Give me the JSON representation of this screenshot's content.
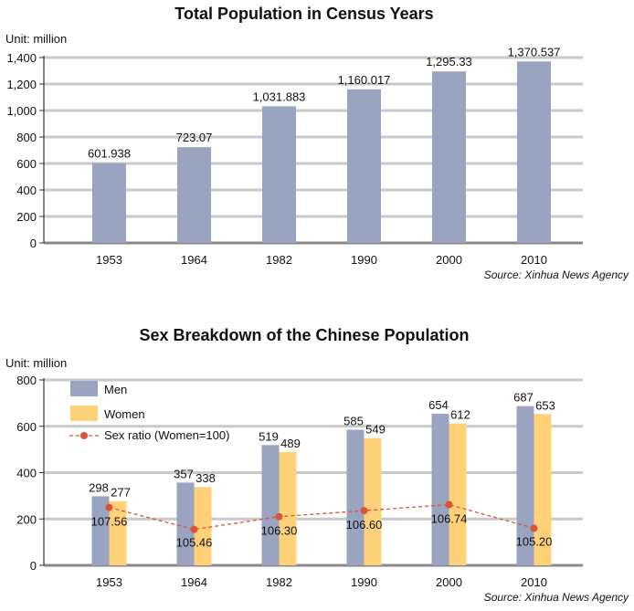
{
  "colors": {
    "men": "#9aa3bf",
    "women": "#ffd27a",
    "ratio": "#d9543b",
    "grid": "#c9c9c9",
    "axis": "#333333"
  },
  "chart_data": [
    {
      "type": "bar",
      "title": "Total Population in Census Years",
      "unit_label": "Unit: million",
      "source": "Source: Xinhua News Agency",
      "categories": [
        "1953",
        "1964",
        "1982",
        "1990",
        "2000",
        "2010"
      ],
      "values": [
        601.938,
        723.07,
        1031.883,
        1160.017,
        1295.33,
        1370.537
      ],
      "value_labels": [
        "601.938",
        "723.07",
        "1,031.883",
        "1,160.017",
        "1,295.33",
        "1,370.537"
      ],
      "ylim": [
        0,
        1400
      ],
      "yticks": [
        0,
        200,
        400,
        600,
        800,
        1000,
        1200,
        1400
      ],
      "ytick_labels": [
        "0",
        "200",
        "400",
        "600",
        "800",
        "1,000",
        "1,200",
        "1,400"
      ],
      "grid": true
    },
    {
      "type": "bar",
      "title": "Sex Breakdown of the Chinese Population",
      "unit_label": "Unit: million",
      "source": "Source: Xinhua News Agency",
      "categories": [
        "1953",
        "1964",
        "1982",
        "1990",
        "2000",
        "2010"
      ],
      "series": [
        {
          "name": "Men",
          "values": [
            298,
            357,
            519,
            585,
            654,
            687
          ]
        },
        {
          "name": "Women",
          "values": [
            277,
            338,
            489,
            549,
            612,
            653
          ]
        }
      ],
      "line_series": {
        "name": "Sex ratio (Women=100)",
        "values": [
          107.56,
          105.46,
          106.3,
          106.6,
          106.74,
          105.2
        ],
        "value_labels": [
          "107.56",
          "105.46",
          "106.30",
          "106.60",
          "106.74",
          "105.20"
        ],
        "plot_values": [
          250,
          155,
          210,
          236,
          262,
          160
        ]
      },
      "ylim": [
        0,
        800
      ],
      "yticks": [
        0,
        200,
        400,
        600,
        800
      ],
      "ytick_labels": [
        "0",
        "200",
        "400",
        "600",
        "800"
      ],
      "grid": true,
      "legend_position": "top-left"
    }
  ]
}
